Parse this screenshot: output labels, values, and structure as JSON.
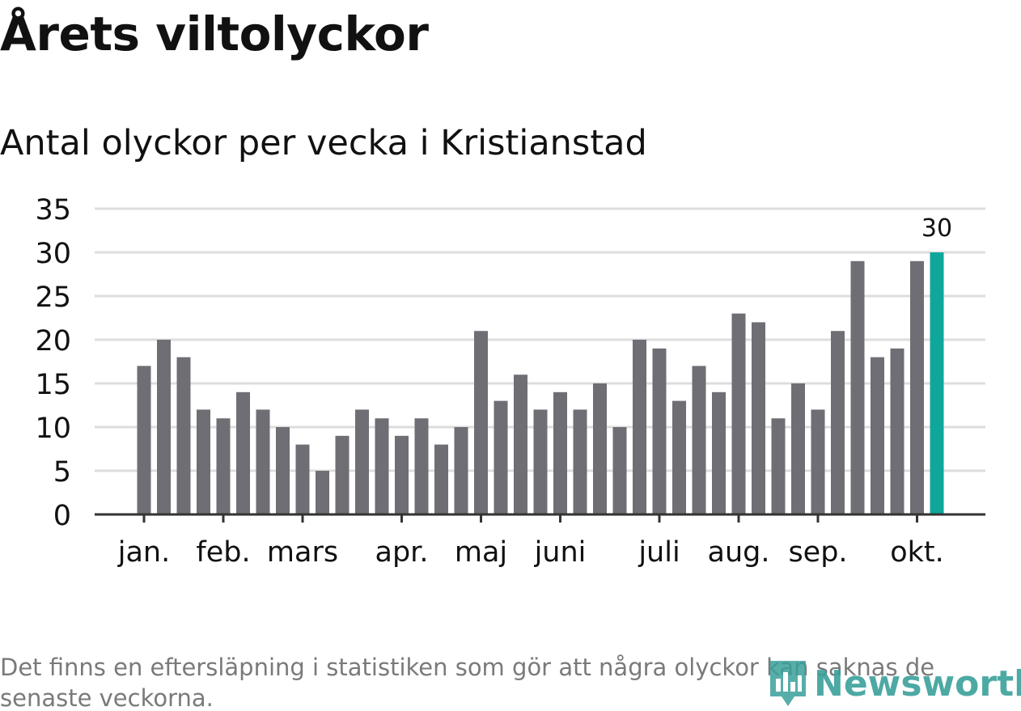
{
  "title": "Årets viltolyckor",
  "subtitle": "Antal olyckor per vecka i Kristianstad",
  "footnote": "Det finns en eftersläpning i statistiken som gör att några olyckor kan saknas de senaste veckorna.",
  "logo": {
    "text": "Newsworthy"
  },
  "colors": {
    "bar": "#6f6e75",
    "highlight": "#0fa79c",
    "grid": "#dddddd",
    "axis": "#333333",
    "text": "#111111",
    "logo": "#3aa09a"
  },
  "chart_data": {
    "type": "bar",
    "title": "Antal olyckor per vecka i Kristianstad",
    "xlabel": "",
    "ylabel": "",
    "ylim": [
      0,
      35
    ],
    "yticks": [
      0,
      5,
      10,
      15,
      20,
      25,
      30,
      35
    ],
    "grid": true,
    "values": [
      17,
      20,
      18,
      12,
      11,
      14,
      12,
      10,
      8,
      5,
      9,
      12,
      11,
      9,
      11,
      8,
      10,
      21,
      13,
      16,
      12,
      14,
      12,
      15,
      10,
      20,
      19,
      13,
      17,
      14,
      23,
      22,
      11,
      15,
      12,
      21,
      29,
      18,
      19,
      29,
      30
    ],
    "highlight_index": 40,
    "highlight_label": "30",
    "month_ticks": [
      {
        "label": "jan.",
        "week_index": 0
      },
      {
        "label": "feb.",
        "week_index": 4
      },
      {
        "label": "mars",
        "week_index": 8
      },
      {
        "label": "apr.",
        "week_index": 13
      },
      {
        "label": "maj",
        "week_index": 17
      },
      {
        "label": "juni",
        "week_index": 21
      },
      {
        "label": "juli",
        "week_index": 26
      },
      {
        "label": "aug.",
        "week_index": 30
      },
      {
        "label": "sep.",
        "week_index": 34
      },
      {
        "label": "okt.",
        "week_index": 39
      }
    ]
  }
}
